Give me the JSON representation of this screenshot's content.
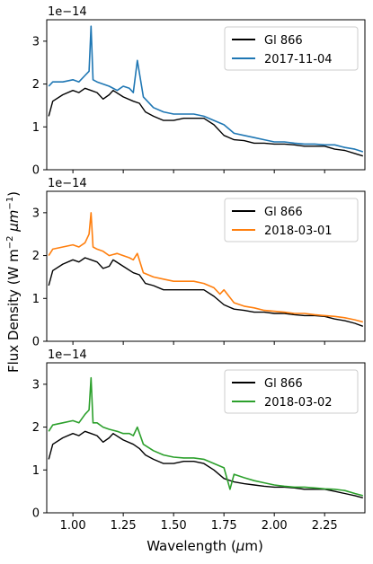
{
  "figure": {
    "xlabel": "Wavelength (μm)",
    "ylabel": "Flux Density (W m⁻² μm⁻¹)",
    "ylabel_parts": [
      "Flux Density (W m",
      "−2",
      " μm",
      "−1",
      ")"
    ],
    "xlabel_parts": [
      "Wavelength (",
      "μ",
      "m)"
    ]
  },
  "chart_data": [
    {
      "type": "line",
      "offset_label": "1e−14",
      "xlim": [
        0.87,
        2.45
      ],
      "ylim": [
        0,
        3.5
      ],
      "xticks": [
        1.0,
        1.25,
        1.5,
        1.75,
        2.0,
        2.25
      ],
      "xtick_labels": [],
      "yticks": [
        0,
        1,
        2,
        3
      ],
      "ytick_labels": [
        "0",
        "1",
        "2",
        "3"
      ],
      "legend_position": "upper right",
      "series": [
        {
          "name": "Gl 866",
          "color": "#000000",
          "x": [
            0.88,
            0.9,
            0.95,
            1.0,
            1.03,
            1.06,
            1.09,
            1.12,
            1.15,
            1.18,
            1.2,
            1.25,
            1.3,
            1.33,
            1.36,
            1.4,
            1.45,
            1.5,
            1.55,
            1.6,
            1.65,
            1.7,
            1.75,
            1.8,
            1.85,
            1.9,
            1.95,
            2.0,
            2.05,
            2.1,
            2.15,
            2.2,
            2.25,
            2.3,
            2.35,
            2.4,
            2.44
          ],
          "y": [
            1.25,
            1.6,
            1.75,
            1.85,
            1.8,
            1.9,
            1.85,
            1.8,
            1.65,
            1.75,
            1.85,
            1.7,
            1.6,
            1.55,
            1.35,
            1.25,
            1.15,
            1.15,
            1.2,
            1.2,
            1.2,
            1.05,
            0.8,
            0.7,
            0.68,
            0.62,
            0.62,
            0.6,
            0.6,
            0.58,
            0.55,
            0.55,
            0.55,
            0.48,
            0.45,
            0.38,
            0.32
          ]
        },
        {
          "name": "2017-11-04",
          "color": "#1f77b4",
          "x": [
            0.88,
            0.9,
            0.95,
            1.0,
            1.03,
            1.06,
            1.08,
            1.09,
            1.1,
            1.12,
            1.15,
            1.18,
            1.22,
            1.25,
            1.28,
            1.3,
            1.32,
            1.35,
            1.4,
            1.45,
            1.5,
            1.55,
            1.6,
            1.65,
            1.7,
            1.75,
            1.8,
            1.85,
            1.9,
            1.95,
            2.0,
            2.05,
            2.1,
            2.15,
            2.2,
            2.25,
            2.3,
            2.35,
            2.4,
            2.44
          ],
          "y": [
            1.95,
            2.05,
            2.05,
            2.1,
            2.05,
            2.2,
            2.3,
            3.35,
            2.1,
            2.05,
            2.0,
            1.95,
            1.85,
            1.95,
            1.9,
            1.8,
            2.55,
            1.7,
            1.45,
            1.35,
            1.3,
            1.3,
            1.3,
            1.25,
            1.15,
            1.05,
            0.85,
            0.8,
            0.75,
            0.7,
            0.65,
            0.65,
            0.62,
            0.6,
            0.6,
            0.58,
            0.58,
            0.52,
            0.48,
            0.42
          ]
        }
      ]
    },
    {
      "type": "line",
      "offset_label": "1e−14",
      "xlim": [
        0.87,
        2.45
      ],
      "ylim": [
        0,
        3.5
      ],
      "xticks": [
        1.0,
        1.25,
        1.5,
        1.75,
        2.0,
        2.25
      ],
      "xtick_labels": [],
      "yticks": [
        0,
        1,
        2,
        3
      ],
      "ytick_labels": [
        "0",
        "1",
        "2",
        "3"
      ],
      "legend_position": "upper right",
      "series": [
        {
          "name": "Gl 866",
          "color": "#000000",
          "x": [
            0.88,
            0.9,
            0.95,
            1.0,
            1.03,
            1.06,
            1.09,
            1.12,
            1.15,
            1.18,
            1.2,
            1.25,
            1.3,
            1.33,
            1.36,
            1.4,
            1.45,
            1.5,
            1.55,
            1.6,
            1.65,
            1.7,
            1.75,
            1.8,
            1.85,
            1.9,
            1.95,
            2.0,
            2.05,
            2.1,
            2.15,
            2.2,
            2.25,
            2.3,
            2.35,
            2.4,
            2.44
          ],
          "y": [
            1.3,
            1.65,
            1.8,
            1.9,
            1.85,
            1.95,
            1.9,
            1.85,
            1.7,
            1.75,
            1.9,
            1.75,
            1.6,
            1.55,
            1.35,
            1.3,
            1.2,
            1.2,
            1.2,
            1.2,
            1.2,
            1.05,
            0.85,
            0.75,
            0.72,
            0.68,
            0.68,
            0.65,
            0.65,
            0.62,
            0.6,
            0.6,
            0.58,
            0.52,
            0.48,
            0.42,
            0.35
          ]
        },
        {
          "name": "2018-03-01",
          "color": "#ff7f0e",
          "x": [
            0.88,
            0.9,
            0.95,
            1.0,
            1.03,
            1.06,
            1.08,
            1.09,
            1.1,
            1.12,
            1.15,
            1.18,
            1.22,
            1.25,
            1.28,
            1.3,
            1.32,
            1.35,
            1.4,
            1.45,
            1.5,
            1.55,
            1.6,
            1.65,
            1.7,
            1.73,
            1.75,
            1.8,
            1.85,
            1.9,
            1.95,
            2.0,
            2.05,
            2.1,
            2.15,
            2.2,
            2.25,
            2.3,
            2.35,
            2.4,
            2.44
          ],
          "y": [
            2.0,
            2.15,
            2.2,
            2.25,
            2.2,
            2.3,
            2.5,
            3.0,
            2.2,
            2.15,
            2.1,
            2.0,
            2.05,
            2.0,
            1.95,
            1.9,
            2.05,
            1.6,
            1.5,
            1.45,
            1.4,
            1.4,
            1.4,
            1.35,
            1.25,
            1.1,
            1.2,
            0.9,
            0.82,
            0.78,
            0.72,
            0.7,
            0.68,
            0.65,
            0.65,
            0.62,
            0.6,
            0.58,
            0.55,
            0.5,
            0.45
          ]
        }
      ]
    },
    {
      "type": "line",
      "offset_label": "1e−14",
      "xlim": [
        0.87,
        2.45
      ],
      "ylim": [
        0,
        3.5
      ],
      "xticks": [
        1.0,
        1.25,
        1.5,
        1.75,
        2.0,
        2.25
      ],
      "xtick_labels": [
        "1.00",
        "1.25",
        "1.50",
        "1.75",
        "2.00",
        "2.25"
      ],
      "yticks": [
        0,
        1,
        2,
        3
      ],
      "ytick_labels": [
        "0",
        "1",
        "2",
        "3"
      ],
      "legend_position": "upper right",
      "series": [
        {
          "name": "Gl 866",
          "color": "#000000",
          "x": [
            0.88,
            0.9,
            0.95,
            1.0,
            1.03,
            1.06,
            1.09,
            1.12,
            1.15,
            1.18,
            1.2,
            1.25,
            1.3,
            1.33,
            1.36,
            1.4,
            1.45,
            1.5,
            1.55,
            1.6,
            1.65,
            1.7,
            1.75,
            1.8,
            1.85,
            1.9,
            1.95,
            2.0,
            2.05,
            2.1,
            2.15,
            2.2,
            2.25,
            2.3,
            2.35,
            2.4,
            2.44
          ],
          "y": [
            1.25,
            1.6,
            1.75,
            1.85,
            1.8,
            1.9,
            1.85,
            1.8,
            1.65,
            1.75,
            1.85,
            1.7,
            1.6,
            1.5,
            1.35,
            1.25,
            1.15,
            1.15,
            1.2,
            1.2,
            1.15,
            1.0,
            0.8,
            0.72,
            0.68,
            0.65,
            0.62,
            0.6,
            0.6,
            0.58,
            0.55,
            0.55,
            0.55,
            0.5,
            0.45,
            0.4,
            0.35
          ]
        },
        {
          "name": "2018-03-02",
          "color": "#2ca02c",
          "x": [
            0.88,
            0.9,
            0.95,
            1.0,
            1.03,
            1.06,
            1.08,
            1.09,
            1.1,
            1.12,
            1.15,
            1.18,
            1.22,
            1.25,
            1.28,
            1.3,
            1.32,
            1.35,
            1.4,
            1.45,
            1.5,
            1.55,
            1.6,
            1.65,
            1.7,
            1.75,
            1.78,
            1.8,
            1.85,
            1.9,
            1.95,
            2.0,
            2.05,
            2.1,
            2.15,
            2.2,
            2.25,
            2.3,
            2.35,
            2.4,
            2.44
          ],
          "y": [
            1.9,
            2.05,
            2.1,
            2.15,
            2.1,
            2.3,
            2.4,
            3.15,
            2.1,
            2.1,
            2.0,
            1.95,
            1.9,
            1.85,
            1.85,
            1.8,
            2.0,
            1.6,
            1.45,
            1.35,
            1.3,
            1.28,
            1.28,
            1.25,
            1.15,
            1.05,
            0.55,
            0.9,
            0.82,
            0.75,
            0.7,
            0.65,
            0.62,
            0.6,
            0.6,
            0.58,
            0.56,
            0.55,
            0.52,
            0.45,
            0.4
          ]
        }
      ]
    }
  ]
}
